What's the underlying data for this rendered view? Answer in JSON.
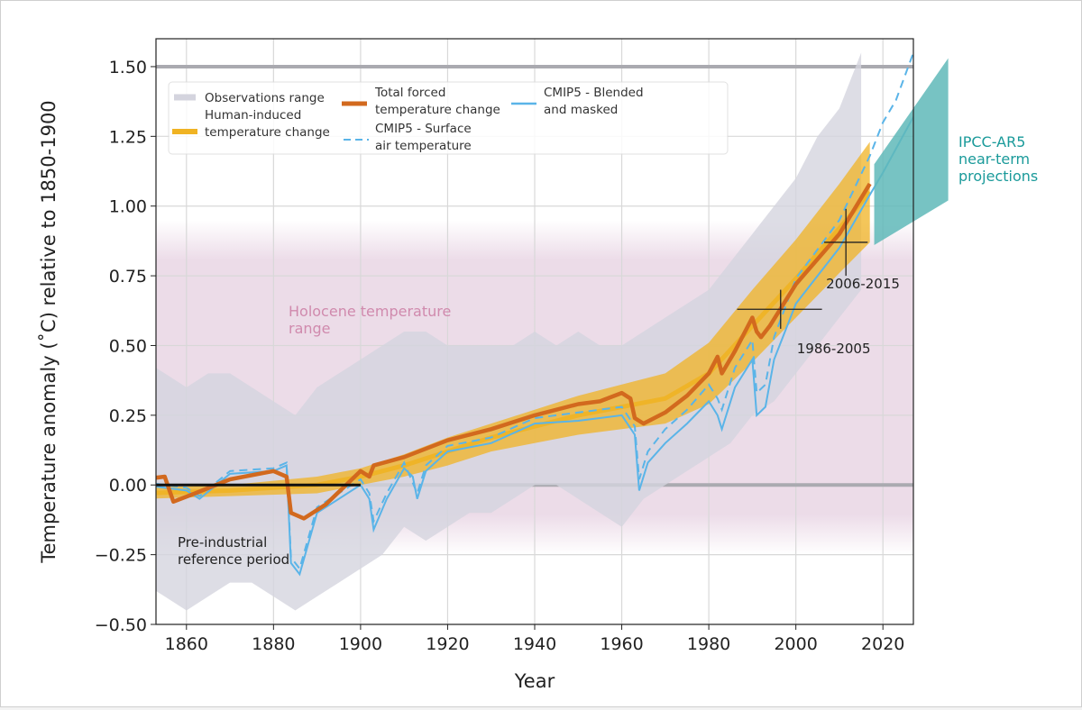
{
  "chart_data": {
    "type": "line",
    "xlabel": "Year",
    "ylabel": "Temperature anomaly (˚C) relative to 1850-1900",
    "xlim": [
      1853,
      2027
    ],
    "ylim": [
      -0.5,
      1.6
    ],
    "xticks": [
      1860,
      1880,
      1900,
      1920,
      1940,
      1960,
      1980,
      2000,
      2020
    ],
    "yticks": [
      -0.5,
      -0.25,
      0.0,
      0.25,
      0.5,
      0.75,
      1.0,
      1.25,
      1.5
    ],
    "ytick_labels": [
      "−0.50",
      "−0.25",
      "0.00",
      "0.25",
      "0.50",
      "0.75",
      "1.00",
      "1.25",
      "1.50"
    ],
    "grid": true,
    "legend_position": "top-left",
    "colors": {
      "observations": "#d4d4de",
      "human_induced": "#f0b323",
      "total_forced": "#d2691e",
      "cmip5": "#5ab4e8",
      "projection": "#5fb8b8",
      "holocene": "#ead8e6",
      "holocene_text": "#d08aad",
      "projection_text": "#1a9a9a"
    },
    "legend": [
      {
        "key": "observations",
        "label": [
          "Observations range"
        ]
      },
      {
        "key": "human_induced",
        "label": [
          "Human-induced",
          "temperature change"
        ]
      },
      {
        "key": "total_forced",
        "label": [
          "Total forced",
          "temperature change"
        ]
      },
      {
        "key": "cmip5_sat",
        "label": [
          "CMIP5 - Surface",
          "air temperature"
        ]
      },
      {
        "key": "cmip5_blended",
        "label": [
          "CMIP5 - Blended",
          "and masked"
        ]
      }
    ],
    "observations_range": {
      "x": [
        1850,
        1855,
        1860,
        1865,
        1870,
        1875,
        1880,
        1885,
        1890,
        1895,
        1900,
        1905,
        1910,
        1915,
        1920,
        1925,
        1930,
        1935,
        1940,
        1945,
        1950,
        1955,
        1960,
        1965,
        1970,
        1975,
        1980,
        1985,
        1990,
        1995,
        2000,
        2005,
        2010,
        2015
      ],
      "lower": [
        -0.35,
        -0.4,
        -0.45,
        -0.4,
        -0.35,
        -0.35,
        -0.4,
        -0.45,
        -0.4,
        -0.35,
        -0.3,
        -0.25,
        -0.15,
        -0.2,
        -0.15,
        -0.1,
        -0.1,
        -0.05,
        0.0,
        0.0,
        -0.05,
        -0.1,
        -0.15,
        -0.05,
        0.0,
        0.05,
        0.1,
        0.15,
        0.25,
        0.3,
        0.4,
        0.5,
        0.6,
        0.7
      ],
      "upper": [
        0.45,
        0.4,
        0.35,
        0.4,
        0.4,
        0.35,
        0.3,
        0.25,
        0.35,
        0.4,
        0.45,
        0.5,
        0.55,
        0.55,
        0.5,
        0.5,
        0.5,
        0.5,
        0.55,
        0.5,
        0.55,
        0.5,
        0.5,
        0.55,
        0.6,
        0.65,
        0.7,
        0.8,
        0.9,
        1.0,
        1.1,
        1.25,
        1.35,
        1.55
      ]
    },
    "human_induced": {
      "x": [
        1850,
        1870,
        1890,
        1900,
        1910,
        1920,
        1930,
        1940,
        1950,
        1960,
        1970,
        1980,
        1990,
        2000,
        2010,
        2017
      ],
      "center": [
        -0.03,
        -0.02,
        0.0,
        0.03,
        0.07,
        0.12,
        0.17,
        0.21,
        0.25,
        0.28,
        0.31,
        0.4,
        0.57,
        0.74,
        0.92,
        1.05
      ],
      "half_width": [
        0.02,
        0.02,
        0.03,
        0.03,
        0.04,
        0.05,
        0.05,
        0.06,
        0.07,
        0.08,
        0.09,
        0.11,
        0.13,
        0.14,
        0.16,
        0.18
      ]
    },
    "total_forced": {
      "x": [
        1850,
        1855,
        1857,
        1862,
        1870,
        1880,
        1883,
        1884,
        1887,
        1892,
        1900,
        1902,
        1903,
        1910,
        1920,
        1930,
        1940,
        1950,
        1955,
        1960,
        1962,
        1963,
        1965,
        1970,
        1975,
        1980,
        1982,
        1983,
        1986,
        1990,
        1991,
        1992,
        1994,
        2000,
        2010,
        2017
      ],
      "y": [
        0.02,
        0.03,
        -0.06,
        -0.03,
        0.02,
        0.05,
        0.03,
        -0.1,
        -0.12,
        -0.07,
        0.05,
        0.03,
        0.07,
        0.1,
        0.16,
        0.2,
        0.25,
        0.29,
        0.3,
        0.33,
        0.31,
        0.24,
        0.22,
        0.26,
        0.32,
        0.4,
        0.46,
        0.4,
        0.48,
        0.6,
        0.55,
        0.53,
        0.57,
        0.72,
        0.9,
        1.08
      ]
    },
    "cmip5_blended": {
      "x": [
        1850,
        1860,
        1863,
        1870,
        1880,
        1883,
        1884,
        1886,
        1890,
        1900,
        1902,
        1903,
        1906,
        1910,
        1912,
        1913,
        1915,
        1920,
        1930,
        1940,
        1950,
        1960,
        1963,
        1964,
        1966,
        1970,
        1975,
        1980,
        1982,
        1983,
        1986,
        1990,
        1991,
        1993,
        1995,
        2000,
        2010,
        2017,
        2020,
        2027
      ],
      "y": [
        0.0,
        -0.02,
        -0.05,
        0.04,
        0.05,
        0.07,
        -0.28,
        -0.32,
        -0.1,
        0.0,
        -0.05,
        -0.16,
        -0.05,
        0.06,
        0.03,
        -0.05,
        0.05,
        0.12,
        0.15,
        0.22,
        0.23,
        0.25,
        0.18,
        -0.02,
        0.08,
        0.15,
        0.22,
        0.3,
        0.25,
        0.2,
        0.35,
        0.45,
        0.25,
        0.28,
        0.45,
        0.65,
        0.85,
        1.04,
        1.12,
        1.32
      ]
    },
    "cmip5_sat": {
      "x": [
        1850,
        1860,
        1863,
        1870,
        1880,
        1883,
        1884,
        1886,
        1890,
        1900,
        1902,
        1903,
        1906,
        1910,
        1913,
        1915,
        1920,
        1930,
        1940,
        1950,
        1960,
        1963,
        1964,
        1966,
        1970,
        1975,
        1980,
        1982,
        1983,
        1986,
        1990,
        1991,
        1993,
        1995,
        2000,
        2010,
        2017,
        2020,
        2023,
        2027
      ],
      "y": [
        0.01,
        -0.01,
        -0.04,
        0.05,
        0.06,
        0.08,
        -0.26,
        -0.3,
        -0.08,
        0.02,
        -0.03,
        -0.13,
        -0.03,
        0.08,
        -0.03,
        0.07,
        0.14,
        0.17,
        0.24,
        0.26,
        0.28,
        0.21,
        0.02,
        0.12,
        0.2,
        0.27,
        0.36,
        0.31,
        0.27,
        0.42,
        0.52,
        0.33,
        0.36,
        0.53,
        0.74,
        0.95,
        1.18,
        1.3,
        1.38,
        1.55
      ]
    },
    "holocene_range": [
      -0.1,
      0.8
    ],
    "holocene_label": [
      "Holocene temperature",
      "range"
    ],
    "reference_lines": [
      1.5,
      0.0
    ],
    "preindustrial": {
      "x": [
        1850,
        1900
      ],
      "y": 0.0,
      "label": [
        "Pre-industrial",
        "reference period"
      ]
    },
    "crosses": [
      {
        "label": "1986-2005",
        "x": [
          1986.5,
          2006
        ],
        "center": [
          1996.5,
          0.63
        ],
        "y": [
          0.56,
          0.7
        ]
      },
      {
        "label": "2006-2015",
        "x": [
          2006.5,
          2016.5
        ],
        "center": [
          2011.5,
          0.87
        ],
        "y": [
          0.75,
          0.99
        ]
      }
    ],
    "projection": {
      "x": [
        2018,
        2035
      ],
      "lower": [
        0.86,
        1.02
      ],
      "upper": [
        1.15,
        1.53
      ],
      "label": [
        "IPCC-AR5",
        "near-term",
        "projections"
      ]
    }
  }
}
